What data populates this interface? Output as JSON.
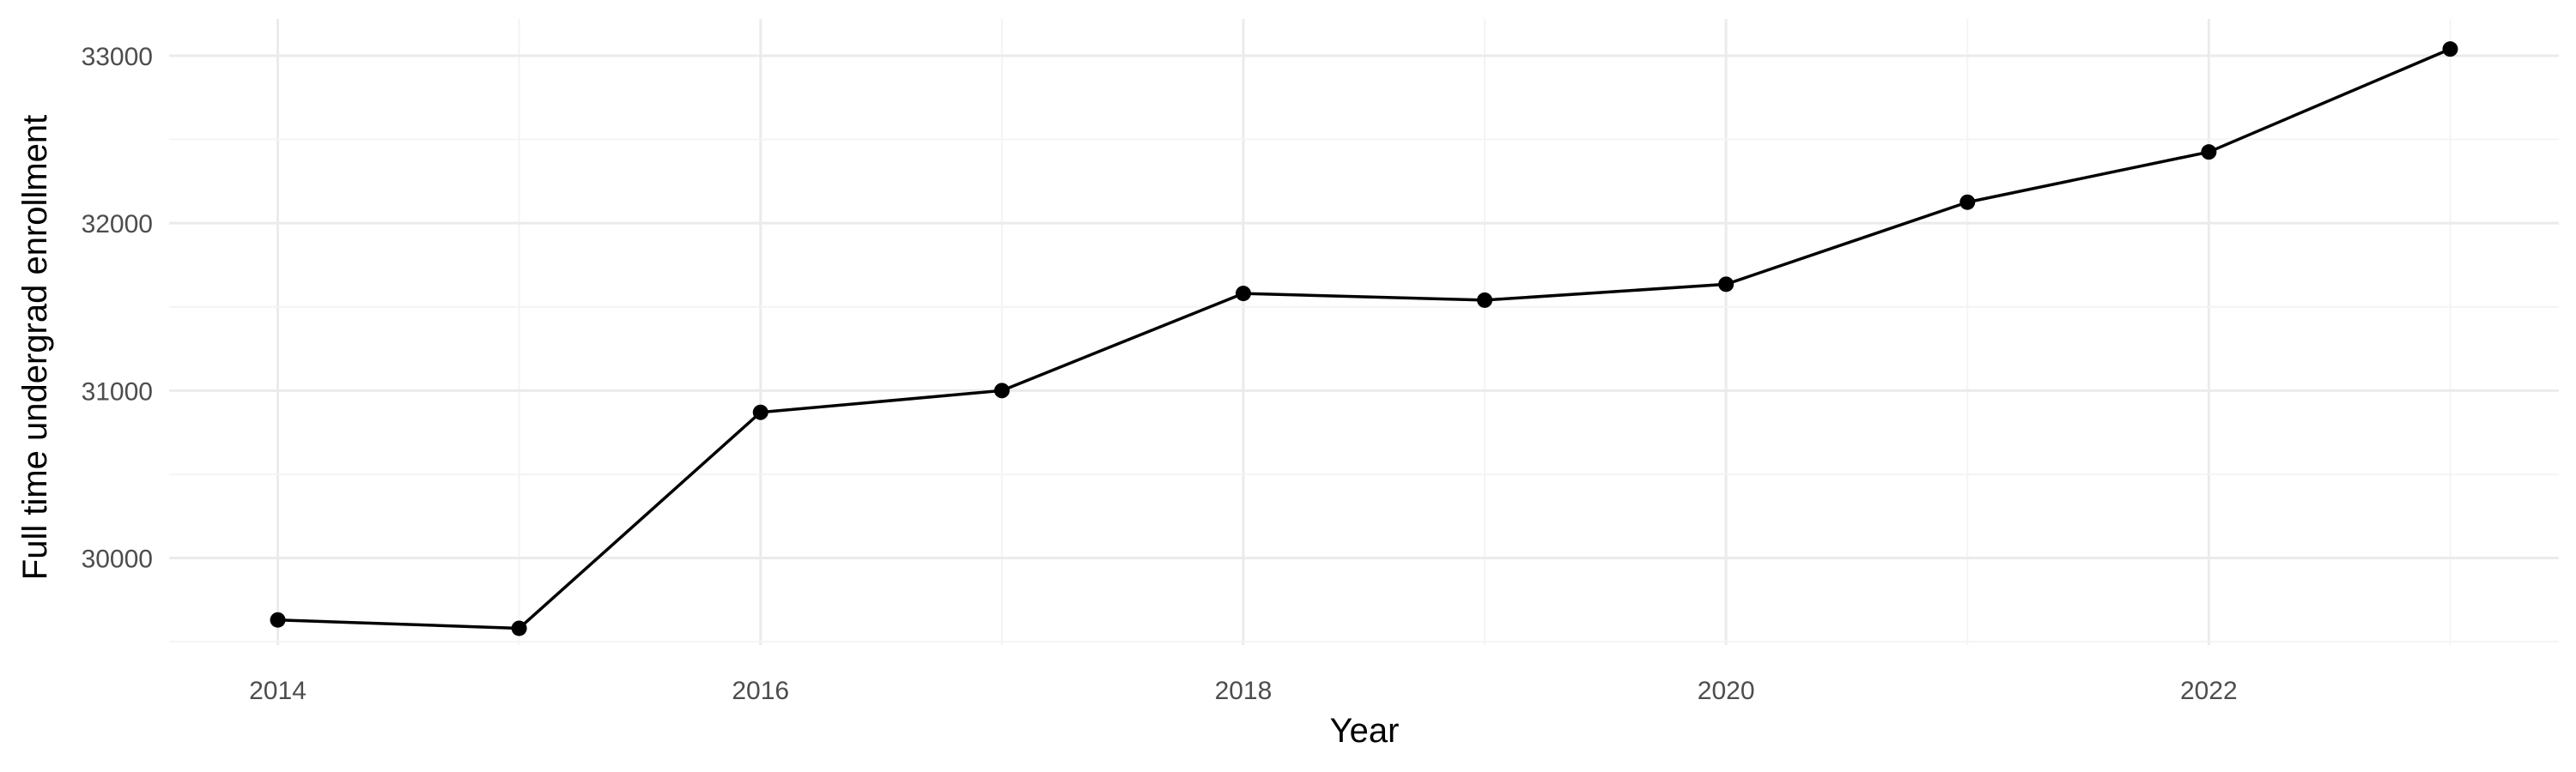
{
  "chart_data": {
    "type": "line",
    "title": "",
    "xlabel": "Year",
    "ylabel": "Full time undergrad enrollment",
    "x": [
      2014,
      2015,
      2016,
      2017,
      2018,
      2019,
      2020,
      2021,
      2022,
      2023
    ],
    "series": [
      {
        "values": [
          29630,
          29580,
          30870,
          31000,
          31580,
          31540,
          31635,
          32125,
          32425,
          33040
        ],
        "color": "#000000"
      }
    ],
    "xlim": [
      2013.55,
      2023.45
    ],
    "ylim": [
      29480,
      33220
    ],
    "x_ticks": [
      "2014",
      "2016",
      "2018",
      "2020",
      "2022"
    ],
    "y_ticks": [
      "30000",
      "31000",
      "32000",
      "33000"
    ],
    "grid": true,
    "legend": "none",
    "colors": {
      "line": "#000000",
      "point": "#000000",
      "grid_major": "#ebebeb",
      "grid_minor": "#f4f4f4",
      "tick_text": "#4d4d4d"
    }
  }
}
